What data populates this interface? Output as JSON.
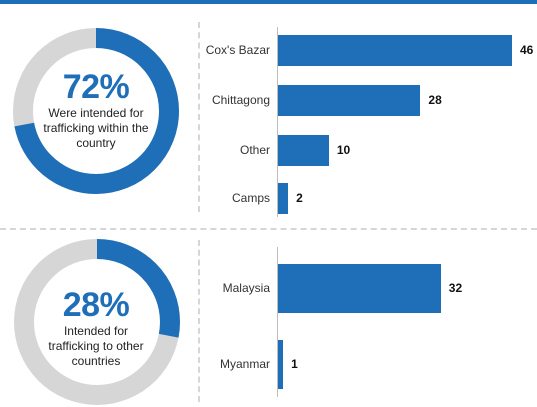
{
  "colors": {
    "accent": "#1f6fb8",
    "muted": "#d6d6d6"
  },
  "donuts": [
    {
      "percent_label": "72%",
      "value": 0.72,
      "text": "Were intended for trafficking within the country"
    },
    {
      "percent_label": "28%",
      "value": 0.28,
      "text": "Intended for trafficking to other countries"
    }
  ],
  "chart_data": [
    {
      "type": "bar",
      "orientation": "horizontal",
      "categories": [
        "Cox's Bazar",
        "Chittagong",
        "Other",
        "Camps"
      ],
      "values": [
        46,
        28,
        10,
        2
      ],
      "data_labels": [
        "46",
        "28",
        "10",
        "2"
      ],
      "xlim": [
        0,
        46
      ]
    },
    {
      "type": "bar",
      "orientation": "horizontal",
      "categories": [
        "Malaysia",
        "Myanmar"
      ],
      "values": [
        32,
        1
      ],
      "data_labels": [
        "32",
        "1"
      ],
      "xlim": [
        0,
        46
      ]
    }
  ]
}
